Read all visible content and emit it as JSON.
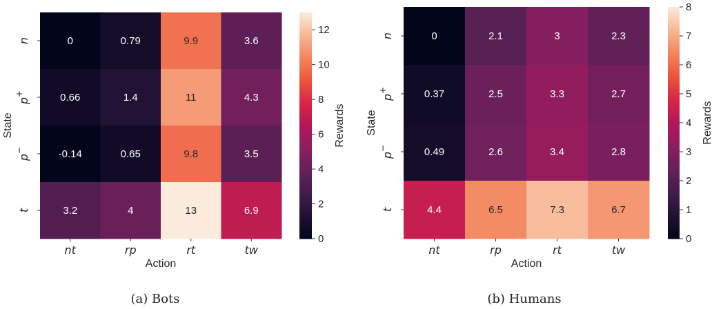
{
  "chart_data": [
    {
      "type": "heatmap",
      "caption": "(a) Bots",
      "xlabel": "Action",
      "ylabel": "State",
      "x_categories": [
        "nt",
        "rp",
        "rt",
        "tw"
      ],
      "y_categories": [
        "n",
        "p",
        "p",
        "t"
      ],
      "y_superscripts": [
        "",
        "+",
        "−",
        ""
      ],
      "values": [
        [
          0,
          0.79,
          9.9,
          3.6
        ],
        [
          0.66,
          1.4,
          11,
          4.3
        ],
        [
          -0.14,
          0.65,
          9.8,
          3.5
        ],
        [
          3.2,
          4,
          13,
          6.9
        ]
      ],
      "value_labels": [
        [
          "0",
          "0.79",
          "9.9",
          "3.6"
        ],
        [
          "0.66",
          "1.4",
          "11",
          "4.3"
        ],
        [
          "-0.14",
          "0.65",
          "9.8",
          "3.5"
        ],
        [
          "3.2",
          "4",
          "13",
          "6.9"
        ]
      ],
      "colorbar": {
        "label": "Rewards",
        "min": 0,
        "max": 13,
        "ticks": [
          0,
          2,
          4,
          6,
          8,
          10,
          12
        ]
      }
    },
    {
      "type": "heatmap",
      "caption": "(b) Humans",
      "xlabel": "Action",
      "ylabel": "State",
      "x_categories": [
        "nt",
        "rp",
        "rt",
        "tw"
      ],
      "y_categories": [
        "n",
        "p",
        "p",
        "t"
      ],
      "y_superscripts": [
        "",
        "+",
        "−",
        ""
      ],
      "values": [
        [
          0,
          2.1,
          3,
          2.3
        ],
        [
          0.37,
          2.5,
          3.3,
          2.7
        ],
        [
          0.49,
          2.6,
          3.4,
          2.8
        ],
        [
          4.4,
          6.5,
          7.3,
          6.7
        ]
      ],
      "value_labels": [
        [
          "0",
          "2.1",
          "3",
          "2.3"
        ],
        [
          "0.37",
          "2.5",
          "3.3",
          "2.7"
        ],
        [
          "0.49",
          "2.6",
          "3.4",
          "2.8"
        ],
        [
          "4.4",
          "6.5",
          "7.3",
          "6.7"
        ]
      ],
      "colorbar": {
        "label": "Rewards",
        "min": 0,
        "max": 8,
        "ticks": [
          0,
          1,
          2,
          3,
          4,
          5,
          6,
          7,
          8
        ]
      }
    }
  ]
}
